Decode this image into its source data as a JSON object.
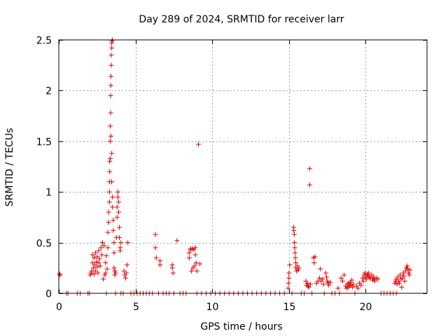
{
  "chart_data": {
    "type": "scatter",
    "title": "Day 289 of 2024, SRMTID for receiver larr",
    "xlabel": "GPS time / hours",
    "ylabel": "SRMTID / TECUs",
    "xlim": [
      0,
      24
    ],
    "ylim": [
      0,
      2.5
    ],
    "x_ticks": [
      0,
      5,
      10,
      15,
      20
    ],
    "x_tick_labels": [
      "0",
      "5",
      "10",
      "15",
      "20"
    ],
    "y_ticks": [
      0,
      0.5,
      1,
      1.5,
      2,
      2.5
    ],
    "y_tick_labels": [
      "0",
      "0.5",
      "1",
      "1.5",
      "2",
      "2.5"
    ],
    "grid": true,
    "marker": "+",
    "series": [
      {
        "name": "SRMTID",
        "color": "#dd0000",
        "points": [
          [
            0.05,
            0.19
          ],
          [
            0.08,
            0.18
          ],
          [
            0.5,
            0.0
          ],
          [
            0.6,
            0.0
          ],
          [
            1.2,
            0.0
          ],
          [
            1.4,
            0.0
          ],
          [
            1.9,
            0.0
          ],
          [
            2.0,
            0.0
          ],
          [
            2.05,
            0.18
          ],
          [
            2.1,
            0.2
          ],
          [
            2.15,
            0.22
          ],
          [
            2.2,
            0.3
          ],
          [
            2.2,
            0.38
          ],
          [
            2.25,
            0.25
          ],
          [
            2.3,
            0.35
          ],
          [
            2.3,
            0.19
          ],
          [
            2.35,
            0.28
          ],
          [
            2.4,
            0.4
          ],
          [
            2.4,
            0.22
          ],
          [
            2.45,
            0.31
          ],
          [
            2.5,
            0.26
          ],
          [
            2.5,
            0.36
          ],
          [
            2.55,
            0.2
          ],
          [
            2.6,
            0.3
          ],
          [
            2.6,
            0.42
          ],
          [
            2.65,
            0.34
          ],
          [
            2.7,
            0.27
          ],
          [
            2.75,
            0.45
          ],
          [
            2.8,
            0.38
          ],
          [
            2.85,
            0.5
          ],
          [
            2.9,
            0.14
          ],
          [
            2.95,
            0.47
          ],
          [
            3.0,
            0.18
          ],
          [
            3.05,
            0.2
          ],
          [
            3.05,
            0.3
          ],
          [
            3.1,
            0.37
          ],
          [
            3.1,
            0.0
          ],
          [
            3.15,
            0.24
          ],
          [
            3.2,
            0.45
          ],
          [
            3.2,
            0.6
          ],
          [
            3.25,
            0.7
          ],
          [
            3.25,
            0.8
          ],
          [
            3.3,
            0.9
          ],
          [
            3.3,
            1.0
          ],
          [
            3.3,
            1.1
          ],
          [
            3.32,
            1.2
          ],
          [
            3.32,
            1.3
          ],
          [
            3.35,
            1.33
          ],
          [
            3.35,
            1.5
          ],
          [
            3.35,
            1.65
          ],
          [
            3.38,
            1.78
          ],
          [
            3.38,
            1.95
          ],
          [
            3.4,
            2.05
          ],
          [
            3.4,
            2.14
          ],
          [
            3.42,
            2.25
          ],
          [
            3.42,
            2.35
          ],
          [
            3.45,
            2.42
          ],
          [
            3.45,
            2.47
          ],
          [
            3.47,
            2.49
          ],
          [
            3.5,
            2.5
          ],
          [
            3.4,
            1.55
          ],
          [
            3.45,
            1.38
          ],
          [
            3.45,
            1.1
          ],
          [
            3.5,
            0.95
          ],
          [
            3.5,
            0.85
          ],
          [
            3.55,
            0.72
          ],
          [
            3.55,
            0.62
          ],
          [
            3.6,
            0.5
          ],
          [
            3.6,
            0.4
          ],
          [
            3.6,
            0.25
          ],
          [
            3.65,
            0.22
          ],
          [
            3.65,
            0.18
          ],
          [
            3.7,
            0.0
          ],
          [
            3.7,
            0.2
          ],
          [
            3.75,
            0.55
          ],
          [
            3.8,
            0.75
          ],
          [
            3.8,
            0.85
          ],
          [
            3.85,
            0.95
          ],
          [
            3.85,
            1.0
          ],
          [
            3.9,
            0.9
          ],
          [
            3.9,
            0.8
          ],
          [
            3.95,
            0.65
          ],
          [
            3.95,
            0.55
          ],
          [
            4.0,
            0.45
          ],
          [
            4.0,
            0.42
          ],
          [
            4.05,
            0.5
          ],
          [
            4.05,
            0.0
          ],
          [
            4.2,
            0.0
          ],
          [
            4.25,
            0.22
          ],
          [
            4.3,
            0.18
          ],
          [
            4.35,
            0.15
          ],
          [
            4.4,
            0.2
          ],
          [
            4.45,
            0.28
          ],
          [
            4.5,
            0.5
          ],
          [
            4.7,
            0.0
          ],
          [
            4.9,
            0.0
          ],
          [
            5.1,
            0.0
          ],
          [
            5.3,
            0.0
          ],
          [
            5.5,
            0.0
          ],
          [
            5.7,
            0.0
          ],
          [
            5.9,
            0.0
          ],
          [
            6.1,
            0.0
          ],
          [
            6.3,
            0.58
          ],
          [
            6.3,
            0.45
          ],
          [
            6.35,
            0.35
          ],
          [
            6.5,
            0.0
          ],
          [
            6.6,
            0.32
          ],
          [
            6.6,
            0.28
          ],
          [
            6.8,
            0.0
          ],
          [
            7.0,
            0.0
          ],
          [
            7.2,
            0.0
          ],
          [
            7.4,
            0.28
          ],
          [
            7.4,
            0.25
          ],
          [
            7.45,
            0.2
          ],
          [
            7.5,
            0.0
          ],
          [
            7.7,
            0.52
          ],
          [
            7.9,
            0.0
          ],
          [
            8.1,
            0.0
          ],
          [
            8.3,
            0.0
          ],
          [
            8.5,
            0.4
          ],
          [
            8.5,
            0.35
          ],
          [
            8.6,
            0.43
          ],
          [
            8.6,
            0.44
          ],
          [
            8.65,
            0.22
          ],
          [
            8.7,
            0.44
          ],
          [
            8.75,
            0.25
          ],
          [
            8.8,
            0.43
          ],
          [
            8.85,
            0.27
          ],
          [
            8.9,
            0.45
          ],
          [
            8.9,
            0.38
          ],
          [
            8.95,
            0.3
          ],
          [
            9.0,
            0.22
          ],
          [
            9.1,
            1.47
          ],
          [
            9.2,
            0.29
          ],
          [
            9.0,
            0.0
          ],
          [
            9.3,
            0.0
          ],
          [
            9.6,
            0.0
          ],
          [
            9.9,
            0.0
          ],
          [
            10.2,
            0.0
          ],
          [
            10.5,
            0.0
          ],
          [
            10.8,
            0.0
          ],
          [
            11.1,
            0.0
          ],
          [
            11.4,
            0.0
          ],
          [
            11.7,
            0.0
          ],
          [
            12.0,
            0.0
          ],
          [
            12.3,
            0.0
          ],
          [
            12.6,
            0.0
          ],
          [
            12.9,
            0.0
          ],
          [
            13.2,
            0.0
          ],
          [
            13.5,
            0.0
          ],
          [
            13.8,
            0.0
          ],
          [
            14.1,
            0.0
          ],
          [
            14.4,
            0.0
          ],
          [
            14.7,
            0.0
          ],
          [
            14.95,
            0.05
          ],
          [
            14.97,
            0.1
          ],
          [
            15.0,
            0.2
          ],
          [
            15.0,
            0.15
          ],
          [
            15.05,
            0.28
          ],
          [
            15.2,
            0.0
          ],
          [
            15.3,
            0.65
          ],
          [
            15.32,
            0.62
          ],
          [
            15.35,
            0.58
          ],
          [
            15.35,
            0.5
          ],
          [
            15.38,
            0.45
          ],
          [
            15.4,
            0.4
          ],
          [
            15.42,
            0.35
          ],
          [
            15.45,
            0.3
          ],
          [
            15.45,
            0.25
          ],
          [
            15.5,
            0.22
          ],
          [
            15.55,
            0.27
          ],
          [
            15.6,
            0.23
          ],
          [
            15.65,
            0.25
          ],
          [
            15.8,
            0.0
          ],
          [
            16.0,
            0.0
          ],
          [
            16.1,
            0.12
          ],
          [
            16.15,
            0.08
          ],
          [
            16.2,
            0.1
          ],
          [
            16.25,
            0.07
          ],
          [
            16.3,
            0.06
          ],
          [
            16.35,
            1.23
          ],
          [
            16.35,
            1.07
          ],
          [
            16.4,
            0.09
          ],
          [
            16.5,
            0.0
          ],
          [
            16.6,
            0.35
          ],
          [
            16.65,
            0.3
          ],
          [
            16.7,
            0.36
          ],
          [
            16.8,
            0.1
          ],
          [
            16.9,
            0.12
          ],
          [
            17.0,
            0.15
          ],
          [
            17.05,
            0.24
          ],
          [
            17.1,
            0.12
          ],
          [
            17.2,
            0.14
          ],
          [
            17.25,
            0.09
          ],
          [
            17.3,
            0.0
          ],
          [
            17.4,
            0.2
          ],
          [
            17.45,
            0.16
          ],
          [
            17.5,
            0.12
          ],
          [
            17.55,
            0.1
          ],
          [
            17.6,
            0.08
          ],
          [
            17.7,
            0.11
          ],
          [
            17.8,
            0.0
          ],
          [
            18.0,
            0.0
          ],
          [
            18.2,
            0.05
          ],
          [
            18.3,
            0.0
          ],
          [
            18.4,
            0.15
          ],
          [
            18.5,
            0.12
          ],
          [
            18.6,
            0.18
          ],
          [
            18.7,
            0.07
          ],
          [
            18.75,
            0.05
          ],
          [
            18.8,
            0.09
          ],
          [
            18.85,
            0.06
          ],
          [
            18.9,
            0.1
          ],
          [
            18.95,
            0.07
          ],
          [
            19.0,
            0.11
          ],
          [
            19.05,
            0.08
          ],
          [
            19.1,
            0.13
          ],
          [
            19.15,
            0.06
          ],
          [
            19.2,
            0.09
          ],
          [
            19.3,
            0.0
          ],
          [
            19.4,
            0.07
          ],
          [
            19.5,
            0.05
          ],
          [
            19.6,
            0.1
          ],
          [
            19.7,
            0.08
          ],
          [
            19.8,
            0.15
          ],
          [
            19.85,
            0.12
          ],
          [
            19.9,
            0.18
          ],
          [
            19.95,
            0.2
          ],
          [
            20.0,
            0.16
          ],
          [
            20.05,
            0.14
          ],
          [
            20.1,
            0.19
          ],
          [
            20.15,
            0.17
          ],
          [
            20.2,
            0.2
          ],
          [
            20.25,
            0.16
          ],
          [
            20.3,
            0.15
          ],
          [
            20.4,
            0.18
          ],
          [
            20.45,
            0.13
          ],
          [
            20.5,
            0.16
          ],
          [
            20.55,
            0.14
          ],
          [
            20.6,
            0.12
          ],
          [
            20.7,
            0.15
          ],
          [
            20.8,
            0.14
          ],
          [
            21.0,
            0.0
          ],
          [
            21.2,
            0.0
          ],
          [
            21.4,
            0.0
          ],
          [
            21.6,
            0.0
          ],
          [
            21.8,
            0.0
          ],
          [
            22.0,
            0.0
          ],
          [
            21.9,
            0.1
          ],
          [
            21.95,
            0.12
          ],
          [
            22.0,
            0.14
          ],
          [
            22.05,
            0.09
          ],
          [
            22.1,
            0.16
          ],
          [
            22.15,
            0.12
          ],
          [
            22.2,
            0.1
          ],
          [
            22.25,
            0.18
          ],
          [
            22.3,
            0.14
          ],
          [
            22.35,
            0.06
          ],
          [
            22.4,
            0.15
          ],
          [
            22.45,
            0.2
          ],
          [
            22.5,
            0.17
          ],
          [
            22.55,
            0.12
          ],
          [
            22.6,
            0.22
          ],
          [
            22.65,
            0.25
          ],
          [
            22.7,
            0.27
          ],
          [
            22.75,
            0.24
          ],
          [
            22.8,
            0.2
          ],
          [
            22.85,
            0.18
          ],
          [
            22.9,
            0.23
          ]
        ]
      }
    ]
  }
}
